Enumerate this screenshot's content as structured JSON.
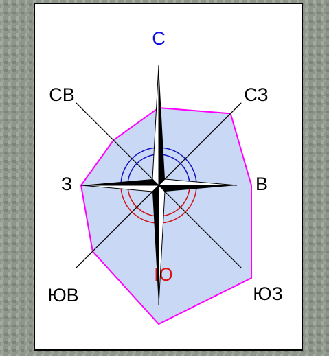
{
  "chart_data": {
    "type": "radar",
    "categories": [
      "С",
      "СЗ",
      "В",
      "ЮЗ",
      "Ю",
      "ЮВ",
      "З",
      "СВ"
    ],
    "category_colors": [
      "#1010e0",
      "#000000",
      "#000000",
      "#000000",
      "#e01010",
      "#000000",
      "#000000",
      "#000000"
    ],
    "values": [
      113,
      148,
      135,
      191,
      202,
      136,
      113,
      93
    ],
    "color": "#ff00ff",
    "fill": "#c9d8f5"
  }
}
